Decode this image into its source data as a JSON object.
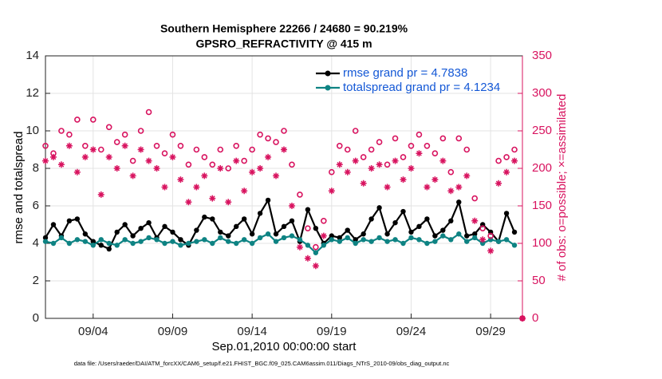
{
  "chart_data": {
    "type": "line",
    "title": "Southern Hemisphere 22266 / 24680 = 90.219%",
    "subtitle": "GPSRO_REFRACTIVITY @ 415 m",
    "xlabel": "Sep.01,2010 00:00:00 start",
    "ylabel": "rmse and totalspread",
    "y2label": "# of obs: o=possible; ×=assimilated",
    "footnote": "data file: /Users/raeder/DAI/ATM_forcXX/CAM6_setup/f.e21.FHIST_BGC.f09_025.CAM6assim.011/Diags_NTrS_2010-09/obs_diag_output.nc",
    "x": [
      0,
      0.5,
      1,
      1.5,
      2,
      2.5,
      3,
      3.5,
      4,
      4.5,
      5,
      5.5,
      6,
      6.5,
      7,
      7.5,
      8,
      8.5,
      9,
      9.5,
      10,
      10.5,
      11,
      11.5,
      12,
      12.5,
      13,
      13.5,
      14,
      14.5,
      15,
      15.5,
      16,
      16.5,
      17,
      17.5,
      18,
      18.5,
      19,
      19.5,
      20,
      20.5,
      21,
      21.5,
      22,
      22.5,
      23,
      23.5,
      24,
      24.5,
      25,
      25.5,
      26,
      26.5,
      27,
      27.5,
      28,
      28.5,
      29,
      29.5,
      30
    ],
    "xlim": [
      0,
      30
    ],
    "xticks": [
      {
        "value": 3,
        "label": "09/04"
      },
      {
        "value": 8,
        "label": "09/09"
      },
      {
        "value": 13,
        "label": "09/14"
      },
      {
        "value": 18,
        "label": "09/19"
      },
      {
        "value": 23,
        "label": "09/24"
      },
      {
        "value": 28,
        "label": "09/29"
      }
    ],
    "ylim": [
      0,
      14
    ],
    "yticks": [
      0,
      2,
      4,
      6,
      8,
      10,
      12,
      14
    ],
    "y2lim": [
      0,
      350
    ],
    "y2ticks": [
      0,
      50,
      100,
      150,
      200,
      250,
      300,
      350
    ],
    "grid": true,
    "legend": "upper right",
    "series": [
      {
        "name": "rmse grand pr = 4.7838",
        "color": "#000000",
        "marker": "dot",
        "values": [
          4.3,
          5.0,
          4.4,
          5.2,
          5.3,
          4.5,
          4.1,
          3.9,
          3.7,
          4.6,
          5.0,
          4.4,
          4.8,
          5.1,
          4.3,
          4.9,
          4.6,
          4.2,
          3.9,
          4.7,
          5.4,
          5.3,
          4.6,
          4.4,
          4.9,
          5.3,
          4.5,
          5.6,
          6.3,
          4.5,
          4.9,
          5.2,
          4.1,
          5.8,
          4.8,
          4.0,
          4.4,
          4.3,
          4.7,
          4.2,
          4.5,
          5.3,
          5.9,
          4.5,
          5.1,
          5.7,
          4.6,
          4.9,
          5.3,
          4.4,
          4.7,
          5.2,
          6.2,
          4.4,
          4.5,
          5.0,
          4.6,
          4.1,
          5.6,
          4.6,
          null
        ]
      },
      {
        "name": "totalspread grand pr = 4.1234",
        "color": "#0e8383",
        "marker": "dot",
        "values": [
          4.1,
          4.0,
          4.3,
          4.0,
          4.2,
          4.1,
          3.9,
          4.2,
          4.0,
          3.9,
          4.2,
          4.0,
          4.1,
          4.3,
          4.2,
          4.0,
          4.1,
          3.9,
          4.0,
          4.1,
          4.2,
          4.0,
          4.3,
          4.1,
          4.0,
          4.2,
          4.0,
          4.3,
          4.5,
          4.1,
          4.3,
          4.4,
          4.2,
          3.9,
          3.5,
          3.9,
          4.2,
          4.1,
          4.3,
          4.0,
          4.2,
          4.1,
          4.3,
          4.1,
          4.2,
          4.0,
          4.3,
          4.2,
          4.0,
          4.1,
          4.4,
          4.2,
          4.5,
          4.1,
          4.3,
          4.0,
          4.2,
          4.1,
          4.2,
          3.9,
          null
        ]
      },
      {
        "axis": "y2",
        "color": "#d8135f",
        "marker": "circle",
        "values": [
          230,
          220,
          250,
          245,
          265,
          230,
          265,
          225,
          255,
          235,
          245,
          210,
          250,
          275,
          230,
          220,
          245,
          230,
          205,
          225,
          215,
          205,
          225,
          200,
          230,
          210,
          225,
          245,
          240,
          235,
          250,
          205,
          165,
          120,
          95,
          130,
          195,
          230,
          225,
          250,
          215,
          225,
          235,
          205,
          240,
          215,
          230,
          245,
          230,
          220,
          240,
          195,
          240,
          225,
          160,
          120,
          110,
          210,
          215,
          225,
          0
        ]
      },
      {
        "axis": "y2",
        "color": "#d8135f",
        "marker": "asterisk",
        "values": [
          210,
          215,
          205,
          230,
          195,
          215,
          225,
          165,
          215,
          200,
          230,
          190,
          225,
          210,
          200,
          175,
          215,
          185,
          155,
          175,
          190,
          160,
          200,
          155,
          210,
          170,
          195,
          200,
          215,
          190,
          225,
          150,
          95,
          80,
          70,
          110,
          170,
          205,
          195,
          210,
          180,
          200,
          205,
          175,
          210,
          185,
          200,
          220,
          175,
          185,
          210,
          170,
          175,
          190,
          130,
          105,
          90,
          180,
          195,
          210,
          0
        ]
      }
    ]
  }
}
